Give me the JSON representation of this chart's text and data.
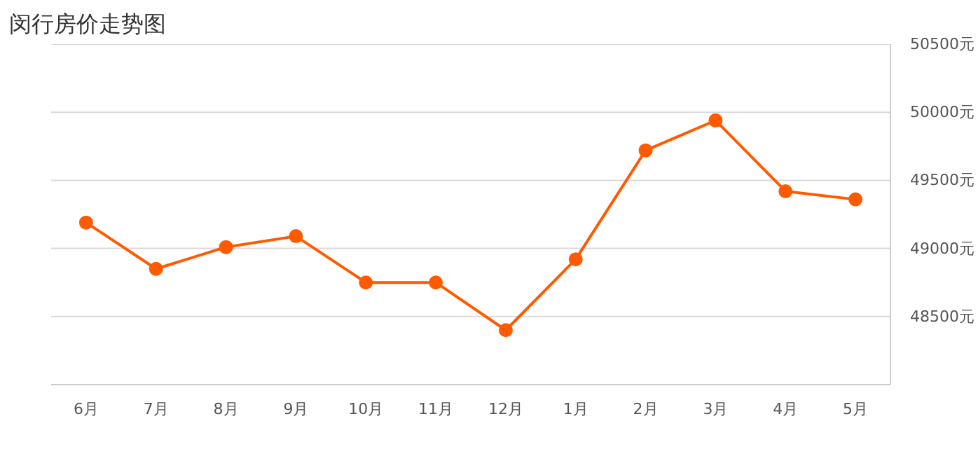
{
  "chart_data": {
    "type": "line",
    "title": "闵行房价走势图",
    "categories": [
      "6月",
      "7月",
      "8月",
      "9月",
      "10月",
      "11月",
      "12月",
      "1月",
      "2月",
      "3月",
      "4月",
      "5月"
    ],
    "series": [
      {
        "color": "#ff5a00",
        "values": [
          49190,
          48850,
          49010,
          49090,
          48750,
          48750,
          48400,
          48920,
          49720,
          49940,
          49420,
          49360
        ]
      }
    ],
    "ylim": [
      48000,
      50500
    ],
    "yticks": [
      {
        "value": 48500,
        "label": "48500元"
      },
      {
        "value": 49000,
        "label": "49000元"
      },
      {
        "value": 49500,
        "label": "49500元"
      },
      {
        "value": 50000,
        "label": "50000元"
      },
      {
        "value": 50500,
        "label": "50500元"
      }
    ],
    "grid": "y",
    "marker": "circle",
    "line_style": "solid"
  }
}
